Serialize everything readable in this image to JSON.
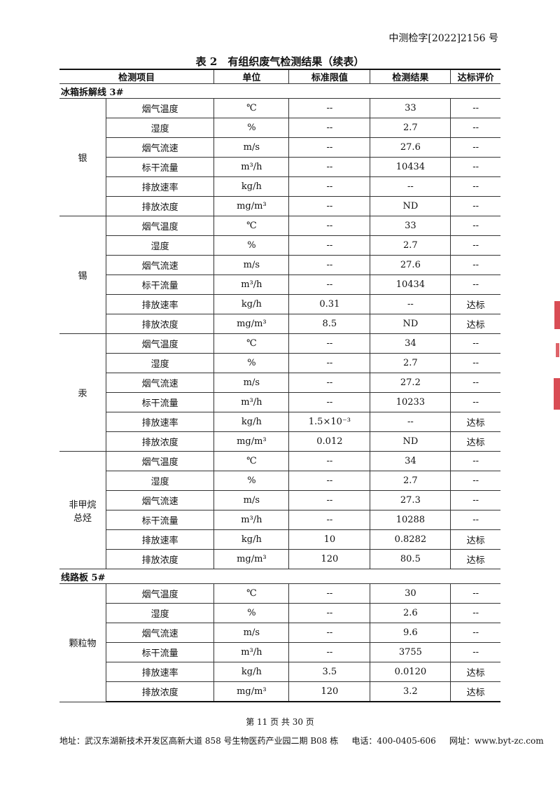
{
  "header": {
    "doc_number": "中测检字[2022]2156 号"
  },
  "table": {
    "title": "表 2　有组织废气检测结果（续表）",
    "columns": [
      "检测项目",
      "单位",
      "标准限值",
      "检测结果",
      "达标评价"
    ],
    "sections": [
      {
        "name": "冰箱拆解线 3#",
        "groups": [
          {
            "item": "银",
            "rows": [
              [
                "烟气温度",
                "℃",
                "--",
                "33",
                "--"
              ],
              [
                "湿度",
                "%",
                "--",
                "2.7",
                "--"
              ],
              [
                "烟气流速",
                "m/s",
                "--",
                "27.6",
                "--"
              ],
              [
                "标干流量",
                "m³/h",
                "--",
                "10434",
                "--"
              ],
              [
                "排放速率",
                "kg/h",
                "--",
                "--",
                "--"
              ],
              [
                "排放浓度",
                "mg/m³",
                "--",
                "ND",
                "--"
              ]
            ]
          },
          {
            "item": "锡",
            "rows": [
              [
                "烟气温度",
                "℃",
                "--",
                "33",
                "--"
              ],
              [
                "湿度",
                "%",
                "--",
                "2.7",
                "--"
              ],
              [
                "烟气流速",
                "m/s",
                "--",
                "27.6",
                "--"
              ],
              [
                "标干流量",
                "m³/h",
                "--",
                "10434",
                "--"
              ],
              [
                "排放速率",
                "kg/h",
                "0.31",
                "--",
                "达标"
              ],
              [
                "排放浓度",
                "mg/m³",
                "8.5",
                "ND",
                "达标"
              ]
            ]
          },
          {
            "item": "汞",
            "rows": [
              [
                "烟气温度",
                "℃",
                "--",
                "34",
                "--"
              ],
              [
                "湿度",
                "%",
                "--",
                "2.7",
                "--"
              ],
              [
                "烟气流速",
                "m/s",
                "--",
                "27.2",
                "--"
              ],
              [
                "标干流量",
                "m³/h",
                "--",
                "10233",
                "--"
              ],
              [
                "排放速率",
                "kg/h",
                "1.5×10⁻³",
                "--",
                "达标"
              ],
              [
                "排放浓度",
                "mg/m³",
                "0.012",
                "ND",
                "达标"
              ]
            ]
          },
          {
            "item": "非甲烷\n总烃",
            "rows": [
              [
                "烟气温度",
                "℃",
                "--",
                "34",
                "--"
              ],
              [
                "湿度",
                "%",
                "--",
                "2.7",
                "--"
              ],
              [
                "烟气流速",
                "m/s",
                "--",
                "27.3",
                "--"
              ],
              [
                "标干流量",
                "m³/h",
                "--",
                "10288",
                "--"
              ],
              [
                "排放速率",
                "kg/h",
                "10",
                "0.8282",
                "达标"
              ],
              [
                "排放浓度",
                "mg/m³",
                "120",
                "80.5",
                "达标"
              ]
            ]
          }
        ]
      },
      {
        "name": "线路板 5#",
        "groups": [
          {
            "item": "颗粒物",
            "rows": [
              [
                "烟气温度",
                "℃",
                "--",
                "30",
                "--"
              ],
              [
                "湿度",
                "%",
                "--",
                "2.6",
                "--"
              ],
              [
                "烟气流速",
                "m/s",
                "--",
                "9.6",
                "--"
              ],
              [
                "标干流量",
                "m³/h",
                "--",
                "3755",
                "--"
              ],
              [
                "排放速率",
                "kg/h",
                "3.5",
                "0.0120",
                "达标"
              ],
              [
                "排放浓度",
                "mg/m³",
                "120",
                "3.2",
                "达标"
              ]
            ]
          }
        ]
      }
    ]
  },
  "footer": {
    "page": "第 11 页 共 30 页",
    "address": "地址：武汉东湖新技术开发区高新大道 858 号生物医药产业园二期 B08 栋     电话：400-0405-606     网址：www.byt-zc.com"
  },
  "stamp_color": "#d0212a"
}
